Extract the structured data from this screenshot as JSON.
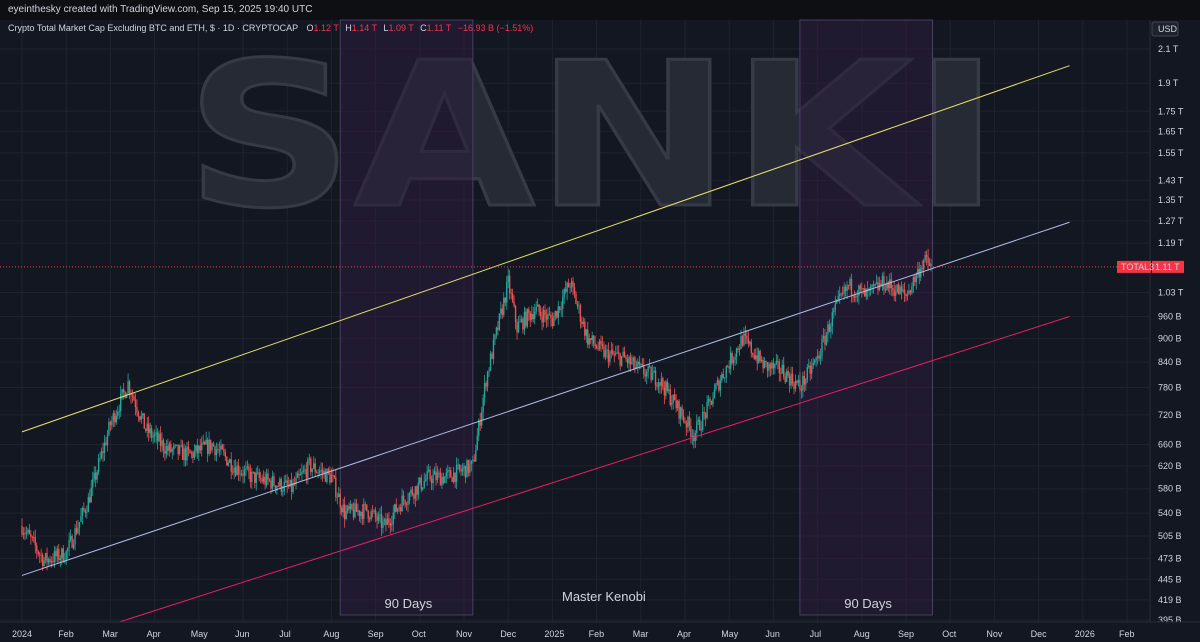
{
  "header": {
    "attribution": "eyeinthesky created with TradingView.com, Sep 15, 2025 19:40 UTC"
  },
  "legend": {
    "symbol_name": "Crypto Total Market Cap Excluding BTC and ETH, $ · 1D · CRYPTOCAP",
    "o_label": "O",
    "o_value": "1.12 T",
    "h_label": "H",
    "h_value": "1.14 T",
    "l_label": "L",
    "l_value": "1.09 T",
    "c_label": "C",
    "c_value": "1.11 T",
    "change": "−16.93 B (−1.51%)"
  },
  "watermark": {
    "text": "SANKI"
  },
  "annotations": {
    "zone1": "90 Days",
    "zone2": "90 Days",
    "author": "Master Kenobi"
  },
  "price_tag": {
    "symbol": "TOTAL3",
    "value": "1.11 T"
  },
  "currency": "USD",
  "colors": {
    "background": "#131722",
    "grid": "#1f232d",
    "up_candle": "#26a69a",
    "down_candle": "#ef5350",
    "yellow_line": "#e6e36b",
    "mid_line": "#b0bfe8",
    "lower_line": "#e91e63",
    "zone_fill": "#2b1e3d",
    "price_tag": "#f23645"
  },
  "chart_data": {
    "type": "candlestick",
    "title": "Crypto Total Market Cap Excluding BTC and ETH",
    "y_scale": "log",
    "ylim": [
      400,
      2200
    ],
    "y_ticks": [
      {
        "label": "2.1 T",
        "value": 2100
      },
      {
        "label": "1.9 T",
        "value": 1900
      },
      {
        "label": "1.75 T",
        "value": 1750
      },
      {
        "label": "1.65 T",
        "value": 1650
      },
      {
        "label": "1.55 T",
        "value": 1550
      },
      {
        "label": "1.43 T",
        "value": 1430
      },
      {
        "label": "1.35 T",
        "value": 1350
      },
      {
        "label": "1.27 T",
        "value": 1270
      },
      {
        "label": "1.19 T",
        "value": 1190
      },
      {
        "label": "1.03 T",
        "value": 1030
      },
      {
        "label": "960 B",
        "value": 960
      },
      {
        "label": "900 B",
        "value": 900
      },
      {
        "label": "840 B",
        "value": 840
      },
      {
        "label": "780 B",
        "value": 780
      },
      {
        "label": "720 B",
        "value": 720
      },
      {
        "label": "660 B",
        "value": 660
      },
      {
        "label": "620 B",
        "value": 620
      },
      {
        "label": "580 B",
        "value": 580
      },
      {
        "label": "540 B",
        "value": 540
      },
      {
        "label": "505 B",
        "value": 505
      },
      {
        "label": "473 B",
        "value": 473
      },
      {
        "label": "445 B",
        "value": 445
      },
      {
        "label": "419 B",
        "value": 419
      },
      {
        "label": "395 B",
        "value": 395
      }
    ],
    "x_ticks": [
      {
        "label": "2024",
        "month": 0
      },
      {
        "label": "Feb",
        "month": 1
      },
      {
        "label": "Mar",
        "month": 2
      },
      {
        "label": "Apr",
        "month": 3
      },
      {
        "label": "May",
        "month": 4
      },
      {
        "label": "Jun",
        "month": 5
      },
      {
        "label": "Jul",
        "month": 6
      },
      {
        "label": "Aug",
        "month": 7
      },
      {
        "label": "Sep",
        "month": 8
      },
      {
        "label": "Oct",
        "month": 9
      },
      {
        "label": "Nov",
        "month": 10
      },
      {
        "label": "Dec",
        "month": 11
      },
      {
        "label": "2025",
        "month": 12
      },
      {
        "label": "Feb",
        "month": 13
      },
      {
        "label": "Mar",
        "month": 14
      },
      {
        "label": "Apr",
        "month": 15
      },
      {
        "label": "May",
        "month": 16
      },
      {
        "label": "Jun",
        "month": 17
      },
      {
        "label": "Jul",
        "month": 18
      },
      {
        "label": "Aug",
        "month": 19
      },
      {
        "label": "Sep",
        "month": 20
      },
      {
        "label": "Oct",
        "month": 21
      },
      {
        "label": "Nov",
        "month": 22
      },
      {
        "label": "Dec",
        "month": 23
      },
      {
        "label": "2026",
        "month": 24
      },
      {
        "label": "Feb",
        "month": 25
      }
    ],
    "price_path_months": [
      0,
      0.5,
      1,
      1.5,
      2,
      2.4,
      2.8,
      3.3,
      3.8,
      4.3,
      4.8,
      5.2,
      5.7,
      6.1,
      6.5,
      7,
      7.3,
      7.8,
      8.2,
      8.6,
      9.2,
      9.6,
      10.2,
      10.5,
      11,
      11.2,
      11.6,
      12,
      12.4,
      12.8,
      13.2,
      13.6,
      14,
      14.4,
      14.8,
      15.2,
      15.5,
      15.8,
      16.3,
      16.8,
      17.2,
      17.6,
      18,
      18.4,
      18.7,
      19.1,
      19.5,
      20,
      20.4,
      20.6
    ],
    "price_path_values": [
      520,
      470,
      480,
      560,
      700,
      790,
      690,
      650,
      640,
      660,
      620,
      600,
      590,
      580,
      620,
      600,
      540,
      545,
      520,
      560,
      600,
      600,
      620,
      800,
      1060,
      930,
      980,
      950,
      1060,
      900,
      860,
      850,
      820,
      800,
      740,
      680,
      730,
      800,
      900,
      830,
      820,
      780,
      850,
      980,
      1050,
      1020,
      1060,
      1020,
      1130,
      1110
    ],
    "channel_lines": [
      {
        "name": "upper",
        "from": {
          "month": 0,
          "value": 685
        },
        "to": {
          "month": 23.7,
          "value": 2000
        }
      },
      {
        "name": "middle",
        "from": {
          "month": 0,
          "value": 450
        },
        "to": {
          "month": 23.7,
          "value": 1265
        }
      },
      {
        "name": "lower",
        "from": {
          "month": 2.1,
          "value": 391
        },
        "to": {
          "month": 23.7,
          "value": 960
        }
      }
    ],
    "shaded_zones": [
      {
        "label": "90 Days",
        "start_month": 7.2,
        "end_month": 10.2
      },
      {
        "label": "90 Days",
        "start_month": 17.6,
        "end_month": 20.6
      }
    ],
    "last_close": 1110,
    "currency_label": "USD"
  }
}
